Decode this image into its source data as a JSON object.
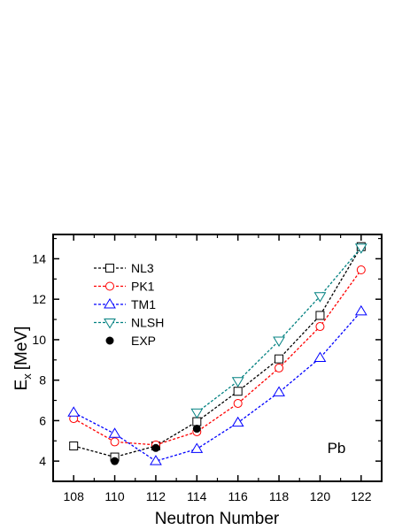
{
  "chart_data": {
    "type": "line",
    "xlabel": "Neutron Number",
    "ylabel_main": "E",
    "ylabel_sub": "x",
    "ylabel_unit": "[MeV]",
    "annotation": "Pb",
    "xlim": [
      107,
      123
    ],
    "ylim": [
      3,
      15.2
    ],
    "x_ticks": [
      108,
      110,
      112,
      114,
      116,
      118,
      120,
      122
    ],
    "y_ticks": [
      4,
      6,
      8,
      10,
      12,
      14
    ],
    "legend_position": "top-left",
    "series": [
      {
        "name": "NL3",
        "color": "#000000",
        "marker": "square",
        "x": [
          108,
          110,
          112,
          114,
          116,
          118,
          120,
          122
        ],
        "values": [
          4.75,
          4.2,
          4.75,
          5.95,
          7.45,
          9.05,
          11.2,
          14.6
        ]
      },
      {
        "name": "PK1",
        "color": "#ff0000",
        "marker": "circle",
        "x": [
          108,
          110,
          112,
          114,
          116,
          118,
          120,
          122
        ],
        "values": [
          6.1,
          4.95,
          4.8,
          5.45,
          6.85,
          8.6,
          10.65,
          13.45
        ]
      },
      {
        "name": "TM1",
        "color": "#0000ff",
        "marker": "triangle-up",
        "x": [
          108,
          110,
          112,
          114,
          116,
          118,
          120,
          122
        ],
        "values": [
          6.4,
          5.35,
          4.0,
          4.6,
          5.9,
          7.4,
          9.1,
          11.4
        ]
      },
      {
        "name": "NLSH",
        "color": "#008080",
        "marker": "triangle-down",
        "x": [
          114,
          116,
          118,
          120,
          122
        ],
        "values": [
          6.4,
          7.95,
          9.95,
          12.15,
          14.55
        ]
      },
      {
        "name": "EXP",
        "color": "#000000",
        "marker": "filled-circle",
        "line": false,
        "x": [
          110,
          112,
          114
        ],
        "values": [
          4.0,
          4.65,
          5.6
        ]
      }
    ]
  }
}
